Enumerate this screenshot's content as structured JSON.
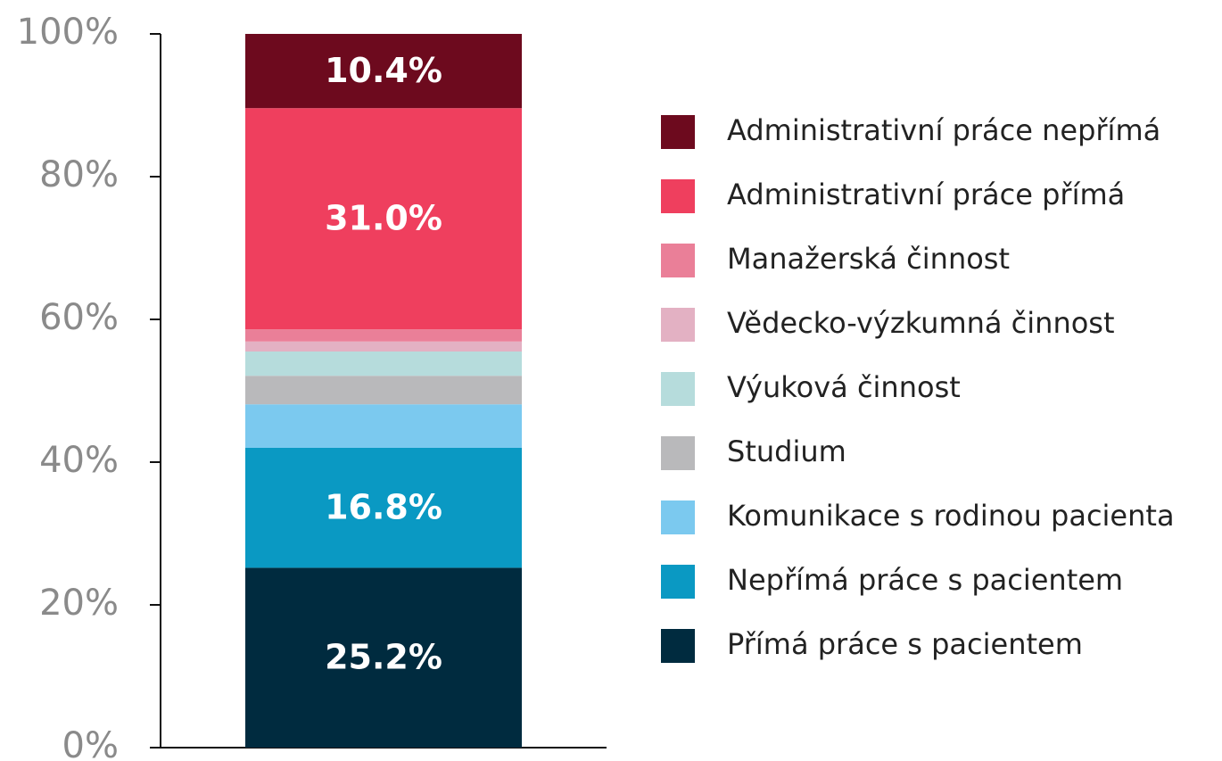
{
  "chart_data": {
    "type": "stacked-bar",
    "categories": [
      null
    ],
    "series": [
      {
        "name": "Přímá práce s pacientem",
        "color": "#002b3f",
        "values": [
          25.2
        ],
        "value_labels": [
          "25.2%"
        ]
      },
      {
        "name": "Nepřímá práce s pacientem",
        "color": "#0a99c3",
        "values": [
          16.8
        ],
        "value_labels": [
          "16.8%"
        ]
      },
      {
        "name": "Komunikace s rodinou pacienta",
        "color": "#7bc9ef",
        "values": [
          6.1
        ]
      },
      {
        "name": "Studium",
        "color": "#b9b9bb",
        "values": [
          4.0
        ]
      },
      {
        "name": "Výuková činnost",
        "color": "#b6dcdc",
        "values": [
          3.4
        ]
      },
      {
        "name": "Vědecko-výzkumná činnost",
        "color": "#e3b1c3",
        "values": [
          1.4
        ]
      },
      {
        "name": "Manažerská činnost",
        "color": "#ea7f98",
        "values": [
          1.7
        ]
      },
      {
        "name": "Administrativní práce přímá",
        "color": "#ef3f5e",
        "values": [
          31.0
        ],
        "value_labels": [
          "31.0%"
        ]
      },
      {
        "name": "Administrativní práce nepřímá",
        "color": "#6d0a1e",
        "values": [
          10.4
        ],
        "value_labels": [
          "10.4%"
        ]
      }
    ],
    "ylim": [
      0,
      100
    ],
    "yticks": [
      {
        "value": 0,
        "label": "0%"
      },
      {
        "value": 20,
        "label": "20%"
      },
      {
        "value": 40,
        "label": "40%"
      },
      {
        "value": 60,
        "label": "60%"
      },
      {
        "value": 80,
        "label": "80%"
      },
      {
        "value": 100,
        "label": "100%"
      }
    ],
    "legend": "right"
  }
}
